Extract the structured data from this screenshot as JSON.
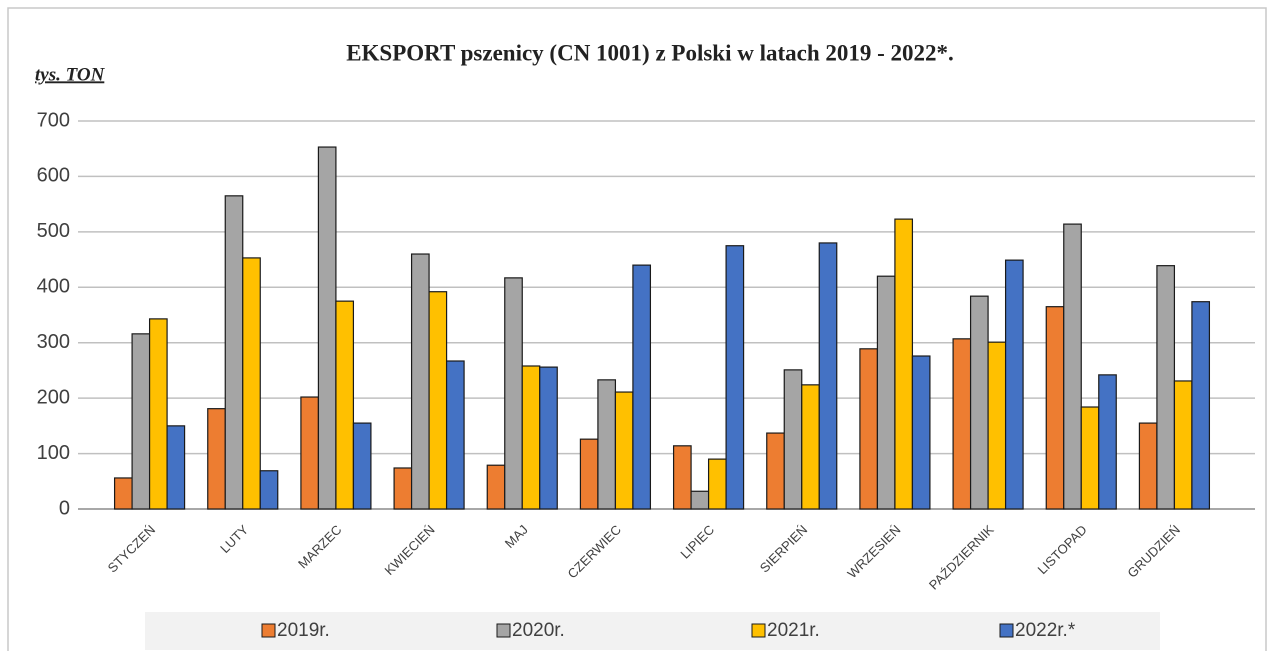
{
  "chart_data": {
    "type": "bar",
    "title": "EKSPORT pszenicy (CN 1001) z Polski w latach 2019 - 2022*.",
    "y_label": "tys. TON",
    "categories": [
      "STYCZEŃ",
      "LUTY",
      "MARZEC",
      "KWIECIEŃ",
      "MAJ",
      "CZERWIEC",
      "LIPIEC",
      "SIERPIEŃ",
      "WRZESIEŃ",
      "PAŹDZIERNIK",
      "LISTOPAD",
      "GRUDZIEŃ"
    ],
    "series": [
      {
        "name": "2019r.",
        "color": "#ed7d31",
        "values": [
          56,
          181,
          202,
          74,
          79,
          126,
          114,
          137,
          289,
          307,
          365,
          155
        ]
      },
      {
        "name": "2020r.",
        "color": "#a5a5a5",
        "values": [
          316,
          565,
          653,
          460,
          417,
          233,
          32,
          251,
          420,
          384,
          514,
          439
        ]
      },
      {
        "name": "2021r.",
        "color": "#ffc000",
        "values": [
          343,
          453,
          375,
          392,
          258,
          211,
          90,
          224,
          523,
          301,
          184,
          231
        ]
      },
      {
        "name": "2022r.*",
        "color": "#4472c4",
        "values": [
          150,
          69,
          155,
          267,
          256,
          440,
          475,
          480,
          276,
          449,
          242,
          374
        ]
      }
    ],
    "ylim": [
      0,
      700
    ],
    "yticks": [
      0,
      100,
      200,
      300,
      400,
      500,
      600,
      700
    ],
    "grid": true
  }
}
